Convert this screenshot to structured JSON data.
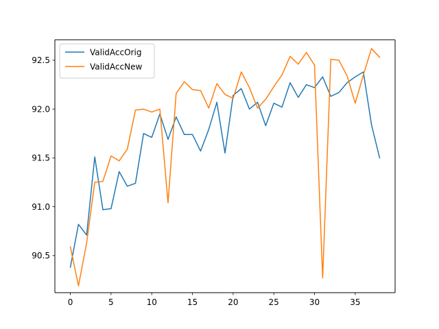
{
  "chart_data": {
    "type": "line",
    "title": "",
    "xlabel": "",
    "ylabel": "",
    "xlim": [
      -1.9,
      39.9
    ],
    "ylim": [
      90.12,
      92.71
    ],
    "xticks": [
      0,
      5,
      10,
      15,
      20,
      25,
      30,
      35
    ],
    "yticks": [
      90.5,
      91.0,
      91.5,
      92.0,
      92.5
    ],
    "xtick_labels": [
      "0",
      "5",
      "10",
      "15",
      "20",
      "25",
      "30",
      "35"
    ],
    "ytick_labels": [
      "90.5",
      "91.0",
      "91.5",
      "92.0",
      "92.5"
    ],
    "grid": false,
    "legend": "top-left",
    "x": [
      0,
      1,
      2,
      3,
      4,
      5,
      6,
      7,
      8,
      9,
      10,
      11,
      12,
      13,
      14,
      15,
      16,
      17,
      18,
      19,
      20,
      21,
      22,
      23,
      24,
      25,
      26,
      27,
      28,
      29,
      30,
      31,
      32,
      33,
      34,
      35,
      36,
      37,
      38
    ],
    "series": [
      {
        "name": "ValidAccOrig",
        "color": "#1f77b4",
        "values": [
          90.38,
          90.82,
          90.71,
          91.51,
          90.97,
          90.98,
          91.36,
          91.21,
          91.24,
          91.75,
          91.71,
          91.95,
          91.69,
          91.92,
          91.74,
          91.74,
          91.57,
          91.79,
          92.07,
          91.55,
          92.14,
          92.21,
          92.0,
          92.07,
          91.83,
          92.06,
          92.02,
          92.27,
          92.12,
          92.25,
          92.22,
          92.33,
          92.13,
          92.17,
          92.27,
          92.33,
          92.38,
          91.84,
          91.5
        ]
      },
      {
        "name": "ValidAccNew",
        "color": "#ff7f0e",
        "values": [
          90.59,
          90.19,
          90.63,
          91.25,
          91.26,
          91.52,
          91.47,
          91.59,
          91.99,
          92.0,
          91.97,
          92.0,
          91.04,
          92.16,
          92.28,
          92.2,
          92.19,
          92.01,
          92.26,
          92.15,
          92.11,
          92.38,
          92.22,
          92.01,
          92.1,
          92.23,
          92.35,
          92.54,
          92.46,
          92.58,
          92.45,
          90.27,
          92.51,
          92.5,
          92.34,
          92.06,
          92.35,
          92.62,
          92.53
        ]
      }
    ]
  }
}
